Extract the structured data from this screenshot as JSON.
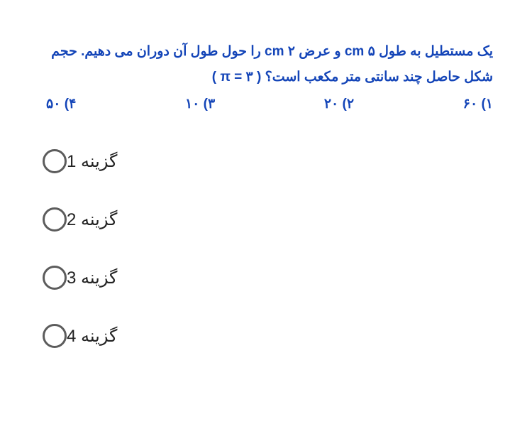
{
  "question": {
    "line1": "یک مستطیل به طول ۵ cm و عرض ۲ cm را حول طول آن دوران می دهیم. حجم",
    "line2": "شکل حاصل چند سانتی متر مکعب است؟ ( ۳ = π )",
    "answers": [
      {
        "num": "۱)",
        "val": "۶۰"
      },
      {
        "num": "۲)",
        "val": "۲۰"
      },
      {
        "num": "۳)",
        "val": "۱۰"
      },
      {
        "num": "۴)",
        "val": "۵۰"
      }
    ]
  },
  "options": [
    {
      "label": "گزینه 1"
    },
    {
      "label": "گزینه 2"
    },
    {
      "label": "گزینه 3"
    },
    {
      "label": "گزینه 4"
    }
  ],
  "colors": {
    "question_text": "#1445b8",
    "option_text": "#222222",
    "radio_border": "#5c5c5c",
    "background": "#ffffff"
  },
  "typography": {
    "question_fontsize": 19,
    "question_weight": 700,
    "option_fontsize": 24
  }
}
